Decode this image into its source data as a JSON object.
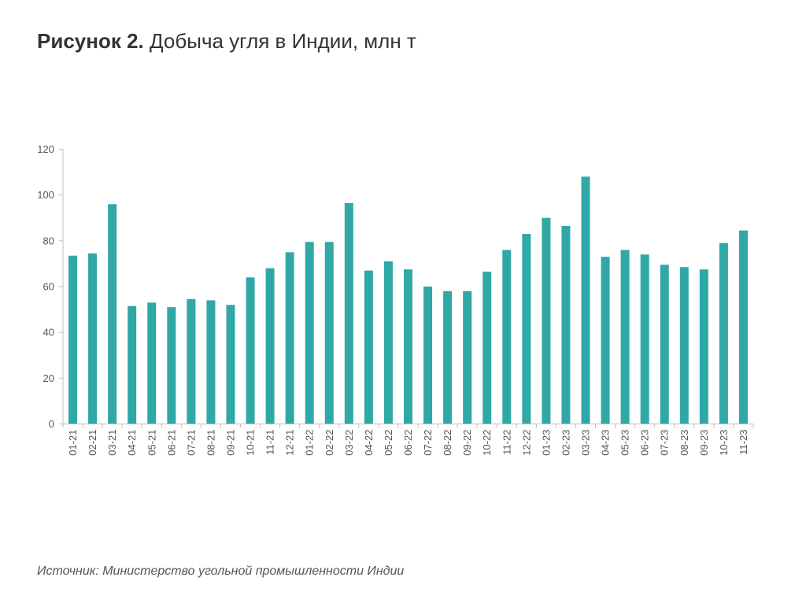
{
  "title": {
    "figure_label": "Рисунок 2.",
    "text": "Добыча угля в Индии, млн т"
  },
  "source": {
    "label": "Источник:",
    "text": "Министерство угольной промышленности Индии"
  },
  "colors": {
    "bar": "#2fa8a6",
    "axis": "#bfbfbf"
  },
  "chart_data": {
    "type": "bar",
    "categories": [
      "01-21",
      "02-21",
      "03-21",
      "04-21",
      "05-21",
      "06-21",
      "07-21",
      "08-21",
      "09-21",
      "10-21",
      "11-21",
      "12-21",
      "01-22",
      "02-22",
      "03-22",
      "04-22",
      "05-22",
      "06-22",
      "07-22",
      "08-22",
      "09-22",
      "10-22",
      "11-22",
      "12-22",
      "01-23",
      "02-23",
      "03-23",
      "04-23",
      "05-23",
      "06-23",
      "07-23",
      "08-23",
      "09-23",
      "10-23",
      "11-23"
    ],
    "values": [
      73.5,
      74.5,
      96,
      51.5,
      53,
      51,
      54.5,
      54,
      52,
      64,
      68,
      75,
      79.5,
      79.5,
      96.5,
      67,
      71,
      67.5,
      60,
      58,
      58,
      66.5,
      76,
      83,
      90,
      86.5,
      108,
      73,
      76,
      74,
      69.5,
      68.5,
      67.5,
      79,
      84.5
    ],
    "yticks": [
      0,
      20,
      40,
      60,
      80,
      100,
      120
    ],
    "ylim": [
      0,
      120
    ],
    "xlabel": "",
    "ylabel": "",
    "grid": false,
    "legend": "none"
  }
}
